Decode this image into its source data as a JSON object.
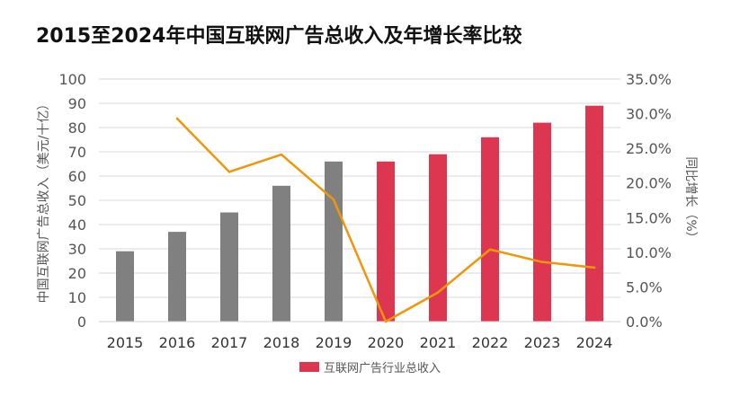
{
  "chart_data": {
    "type": "bar+line",
    "title": "2015至2024年中国互联网广告总收入及年增长率比较",
    "categories": [
      "2015",
      "2016",
      "2017",
      "2018",
      "2019",
      "2020",
      "2021",
      "2022",
      "2023",
      "2024"
    ],
    "ylabel_left": "中国互联网广告总收入（美元/十亿）",
    "ylabel_right": "同比增长（%）",
    "ylim_left": [
      0,
      100
    ],
    "yticks_left": [
      "0",
      "10",
      "20",
      "30",
      "40",
      "50",
      "60",
      "70",
      "80",
      "90",
      "100"
    ],
    "ylim_right": [
      0,
      35
    ],
    "yticks_right": [
      "0.0%",
      "5.0%",
      "10.0%",
      "15.0%",
      "20.0%",
      "25.0%",
      "30.0%",
      "35.0%"
    ],
    "grid": true,
    "legend": {
      "position": "bottom",
      "label": "互联网广告行业总收入"
    },
    "series": [
      {
        "name": "互联网广告行业总收入",
        "type": "bar",
        "axis": "left",
        "values": [
          29,
          37,
          45,
          56,
          66,
          66,
          69,
          76,
          82,
          89
        ],
        "colors": [
          "#808080",
          "#808080",
          "#808080",
          "#808080",
          "#808080",
          "#dc3650",
          "#dc3650",
          "#dc3650",
          "#dc3650",
          "#dc3650"
        ]
      },
      {
        "type": "line",
        "axis": "right",
        "color": "#f0960a",
        "values": [
          null,
          29.3,
          21.6,
          24.1,
          17.6,
          0.0,
          4.2,
          10.4,
          8.6,
          7.8
        ]
      }
    ]
  }
}
